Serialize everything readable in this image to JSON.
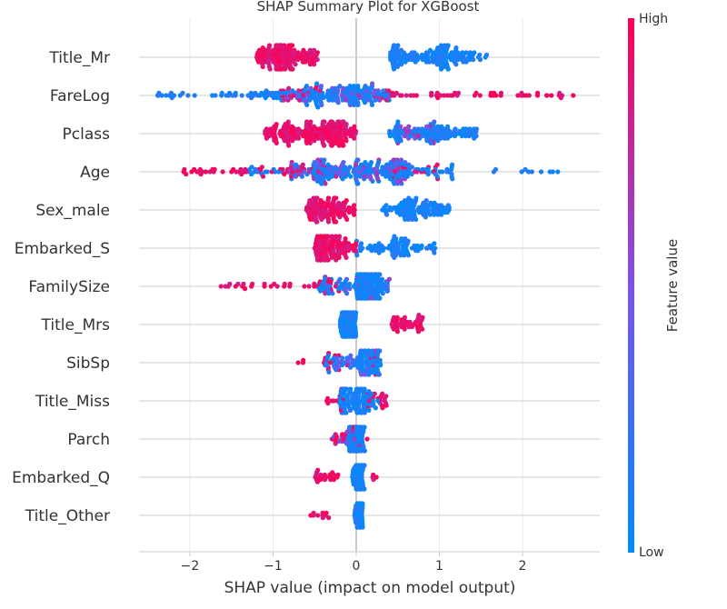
{
  "chart_data": {
    "type": "scatter",
    "subtype": "shap-beeswarm",
    "title": "SHAP Summary Plot for XGBoost",
    "xlabel": "SHAP value (impact on model output)",
    "xlim": [
      -2.6,
      2.9
    ],
    "xticks": [
      -2,
      -1,
      0,
      1,
      2
    ],
    "xtick_labels": [
      "−2",
      "−1",
      "0",
      "1",
      "2"
    ],
    "colorbar": {
      "title": "Feature value",
      "high_label": "High",
      "low_label": "Low",
      "low_color": "#008bfb",
      "mid_color": "#7c52e8",
      "high_color": "#ff0052"
    },
    "grid": true,
    "zero_line": true,
    "features": [
      {
        "name": "Title_Mr",
        "low": [
          [
            0.4,
            0.5,
            25
          ],
          [
            0.5,
            0.8,
            30
          ],
          [
            0.8,
            1.1,
            55
          ],
          [
            1.1,
            1.4,
            35
          ],
          [
            1.4,
            1.6,
            8
          ]
        ],
        "high": [
          [
            -1.2,
            -1.0,
            35
          ],
          [
            -1.0,
            -0.75,
            85
          ],
          [
            -0.75,
            -0.45,
            35
          ]
        ]
      },
      {
        "name": "FareLog",
        "low": [
          [
            -2.4,
            -1.5,
            20
          ],
          [
            -1.5,
            -0.7,
            35
          ],
          [
            -0.7,
            -0.1,
            60
          ],
          [
            -0.1,
            0.4,
            50
          ]
        ],
        "high": [
          [
            -0.9,
            -0.4,
            15
          ],
          [
            0.3,
            1.0,
            20
          ],
          [
            1.0,
            1.8,
            18
          ],
          [
            1.8,
            2.7,
            16
          ]
        ],
        "mid": [
          [
            -1.0,
            0.4,
            50
          ]
        ]
      },
      {
        "name": "Pclass",
        "low": [
          [
            0.4,
            0.8,
            35
          ],
          [
            0.8,
            1.1,
            40
          ],
          [
            1.1,
            1.45,
            30
          ]
        ],
        "high": [
          [
            -1.1,
            -0.6,
            70
          ],
          [
            -0.6,
            -0.15,
            110
          ],
          [
            -0.15,
            0.0,
            20
          ]
        ],
        "mid": [
          [
            0.5,
            1.1,
            25
          ]
        ]
      },
      {
        "name": "Age",
        "low": [
          [
            -1.3,
            -0.5,
            25
          ],
          [
            -0.5,
            0.6,
            120
          ],
          [
            0.6,
            1.2,
            30
          ],
          [
            1.5,
            2.6,
            10
          ]
        ],
        "high": [
          [
            -2.1,
            -1.2,
            25
          ],
          [
            -1.2,
            -0.4,
            25
          ],
          [
            0.4,
            1.0,
            15
          ]
        ],
        "mid": [
          [
            -0.8,
            0.6,
            80
          ]
        ]
      },
      {
        "name": "Sex_male",
        "low": [
          [
            0.3,
            0.6,
            30
          ],
          [
            0.6,
            0.9,
            50
          ],
          [
            0.9,
            1.15,
            25
          ]
        ],
        "high": [
          [
            -0.6,
            -0.4,
            50
          ],
          [
            -0.4,
            -0.1,
            60
          ],
          [
            -0.1,
            0.0,
            8
          ]
        ]
      },
      {
        "name": "Embarked_S",
        "low": [
          [
            0.0,
            0.4,
            25
          ],
          [
            0.4,
            0.7,
            45
          ],
          [
            0.7,
            0.95,
            15
          ]
        ],
        "high": [
          [
            -0.5,
            -0.2,
            95
          ],
          [
            -0.2,
            0.0,
            25
          ]
        ]
      },
      {
        "name": "FamilySize",
        "low": [
          [
            -0.5,
            0.0,
            30
          ],
          [
            0.0,
            0.3,
            130
          ],
          [
            0.3,
            0.4,
            10
          ]
        ],
        "high": [
          [
            -1.65,
            -0.55,
            22
          ],
          [
            -0.55,
            -0.2,
            12
          ]
        ],
        "mid": [
          [
            -0.4,
            0.4,
            20
          ]
        ]
      },
      {
        "name": "Title_Mrs",
        "low": [
          [
            -0.2,
            0.0,
            110
          ]
        ],
        "high": [
          [
            0.4,
            0.8,
            45
          ]
        ]
      },
      {
        "name": "SibSp",
        "low": [
          [
            -0.4,
            0.0,
            20
          ],
          [
            0.0,
            0.3,
            70
          ]
        ],
        "high": [
          [
            -0.7,
            -0.6,
            3
          ],
          [
            -0.4,
            -0.2,
            12
          ],
          [
            0.15,
            0.3,
            6
          ]
        ],
        "mid": [
          [
            -0.3,
            0.3,
            25
          ]
        ]
      },
      {
        "name": "Title_Miss",
        "low": [
          [
            -0.2,
            0.1,
            80
          ],
          [
            0.1,
            0.3,
            20
          ]
        ],
        "high": [
          [
            -0.4,
            -0.15,
            12
          ],
          [
            0.1,
            0.38,
            18
          ]
        ]
      },
      {
        "name": "Parch",
        "low": [
          [
            -0.1,
            0.1,
            90
          ]
        ],
        "high": [
          [
            -0.3,
            0.0,
            12
          ],
          [
            0.0,
            0.15,
            6
          ]
        ],
        "mid": [
          [
            -0.3,
            0.05,
            20
          ]
        ]
      },
      {
        "name": "Embarked_Q",
        "low": [
          [
            -0.05,
            0.1,
            70
          ]
        ],
        "high": [
          [
            -0.5,
            -0.2,
            22
          ],
          [
            0.15,
            0.25,
            4
          ]
        ]
      },
      {
        "name": "Title_Other",
        "low": [
          [
            -0.02,
            0.08,
            45
          ]
        ],
        "high": [
          [
            -0.55,
            -0.3,
            10
          ]
        ]
      }
    ]
  }
}
